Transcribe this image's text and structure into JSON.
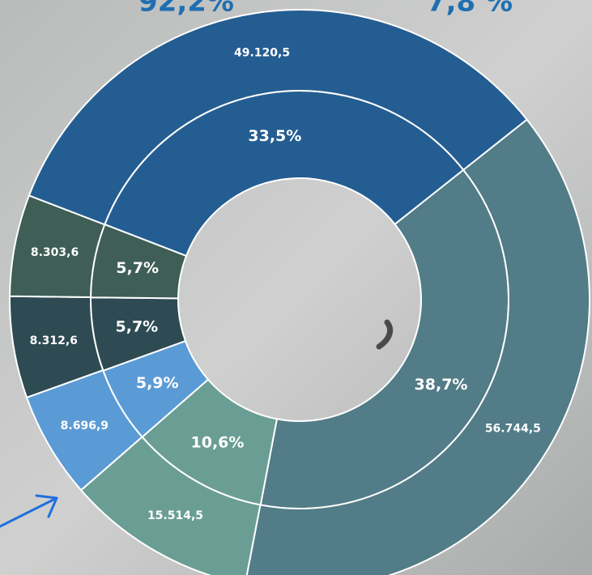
{
  "chart_data": {
    "type": "pie",
    "annotations": [
      {
        "value": 92.2,
        "label": "92,2%"
      },
      {
        "value": 7.8,
        "label": "7,8 %"
      }
    ],
    "series": [
      {
        "name": "inner",
        "values": [
          38.7,
          10.6,
          5.9,
          5.7,
          5.7,
          33.5
        ],
        "value_labels": [
          "38,7%",
          "10,6%",
          "5,9%",
          "5,7%",
          "5,7%",
          "33,5%"
        ]
      },
      {
        "name": "outer",
        "values": [
          56744.5,
          15514.5,
          8696.9,
          8312.6,
          8303.6,
          49120.5
        ],
        "value_labels": [
          "56.744,5",
          "15.514,5",
          "8.696,9",
          "8.312,6",
          "8.303,6",
          "49.120,5"
        ]
      }
    ],
    "colors": [
      "#527c87",
      "#6a9e94",
      "#5b9bd5",
      "#2e4a52",
      "#3e5e56",
      "#245d91"
    ]
  }
}
